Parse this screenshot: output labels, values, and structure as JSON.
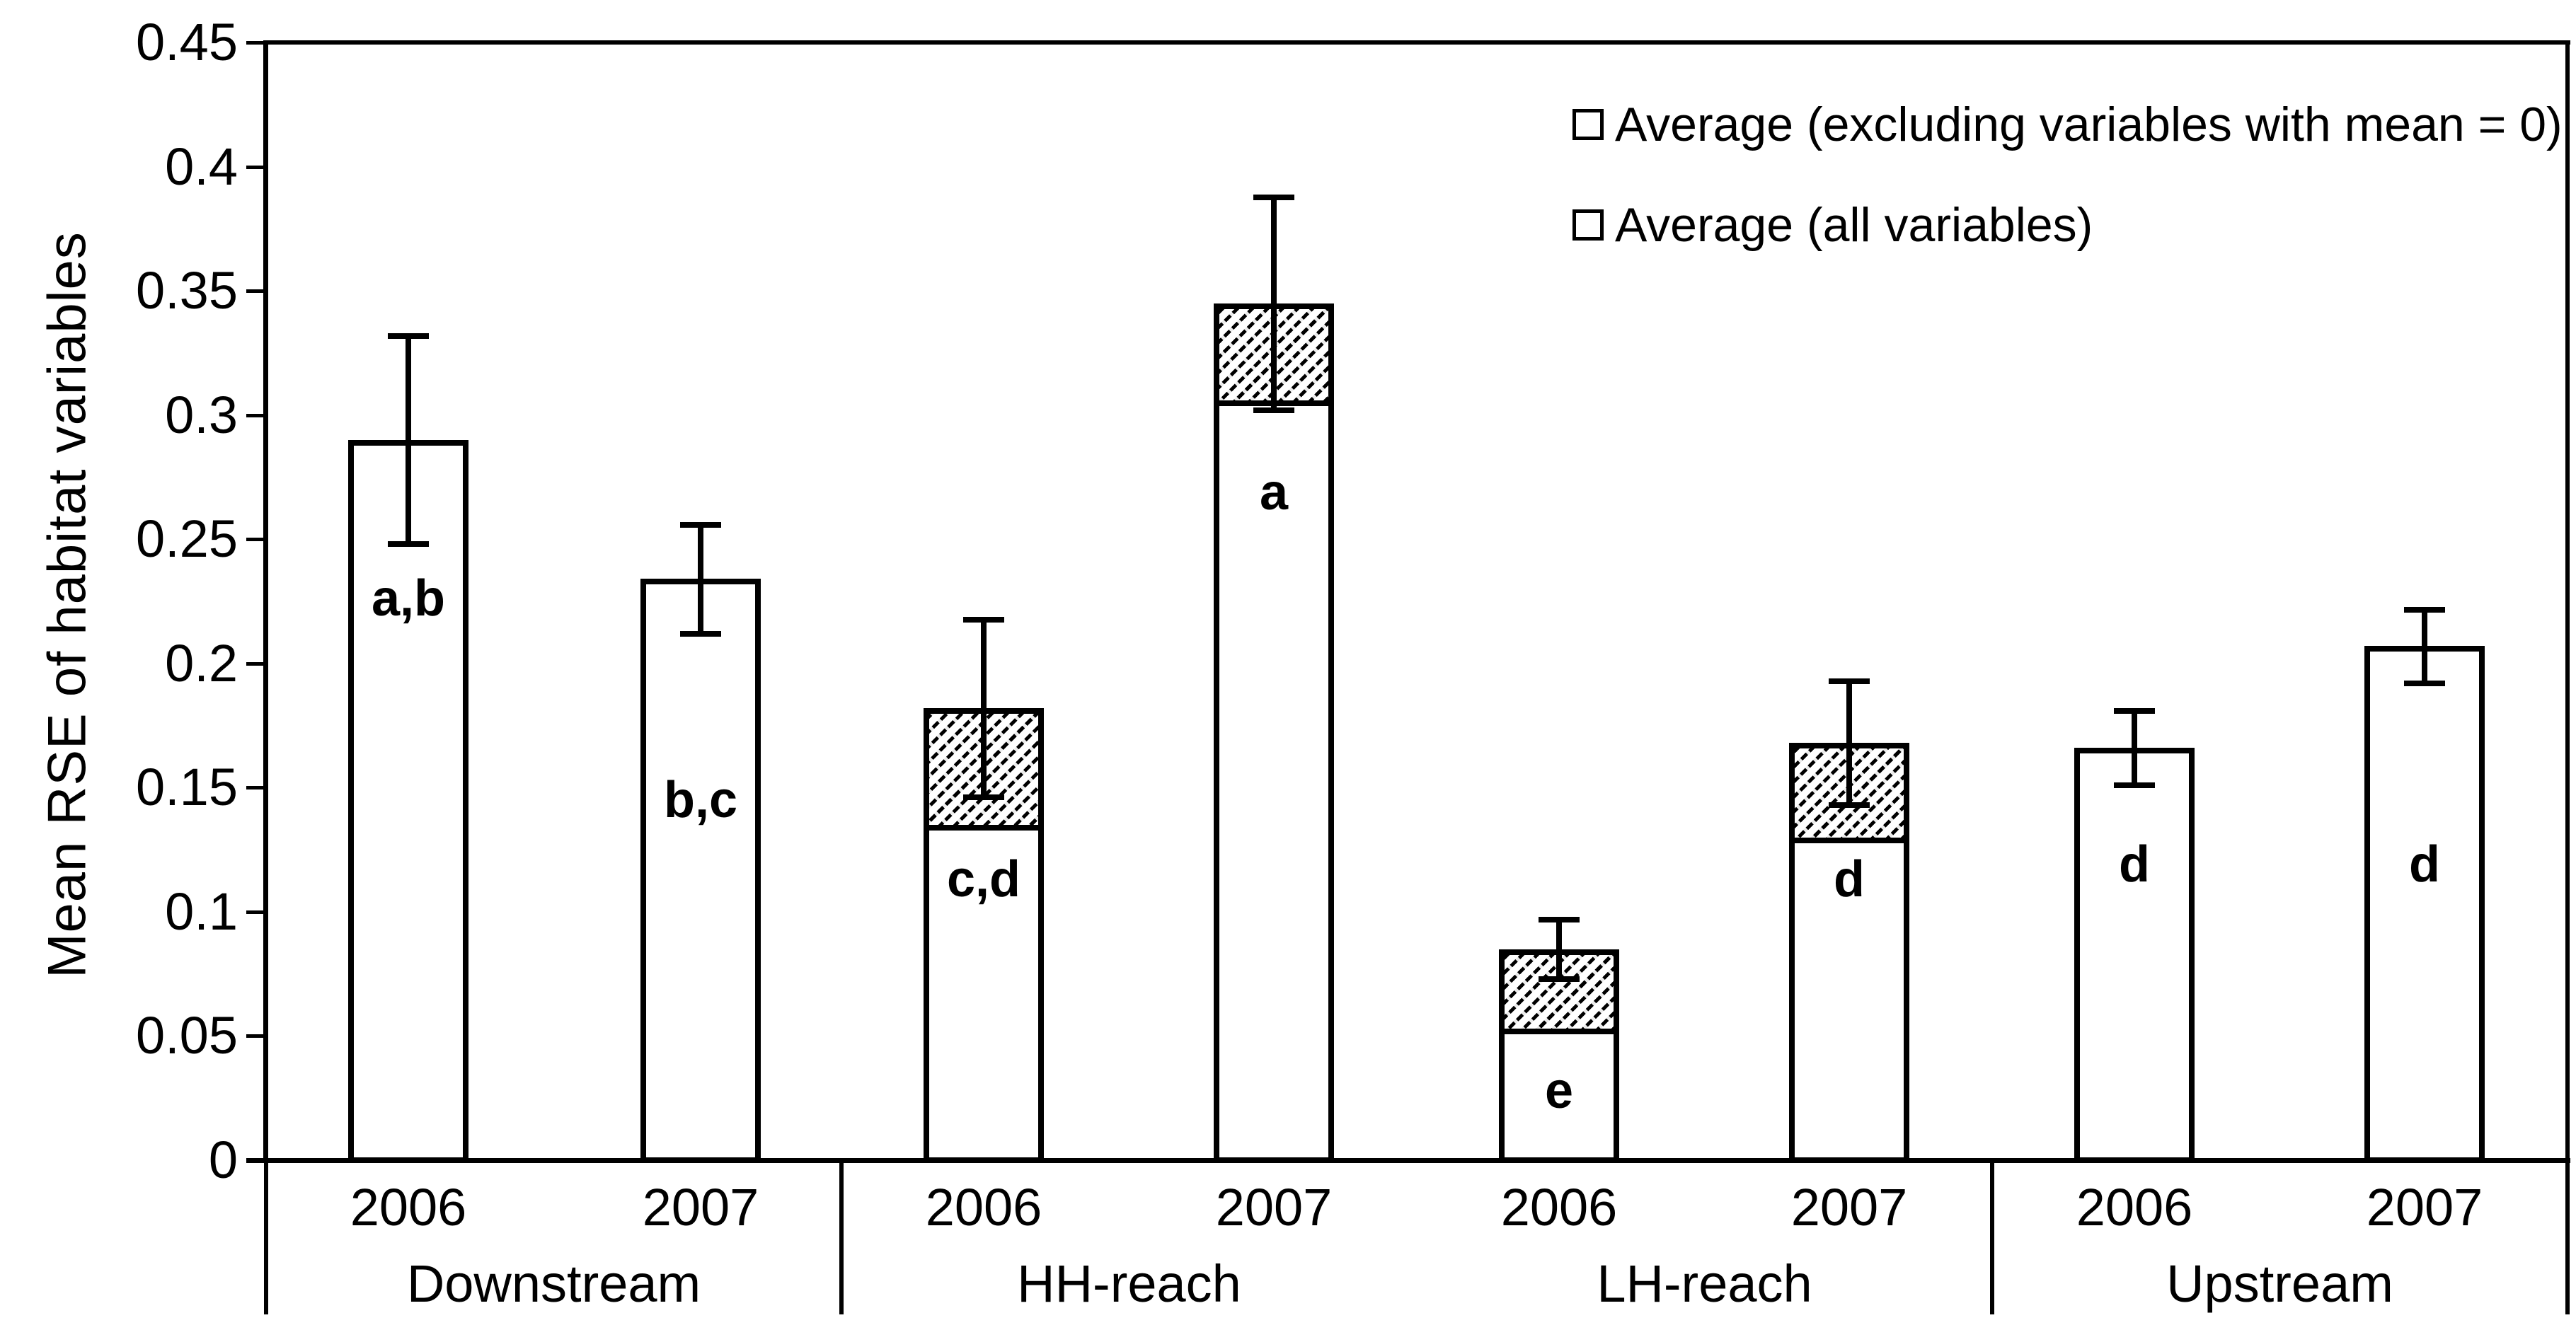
{
  "colors": {
    "ink": "#000000",
    "background": "#ffffff"
  },
  "y_axis": {
    "title": "Mean RSE of habitat variables",
    "min": 0,
    "max": 0.45,
    "step": 0.05,
    "tick_labels": [
      "0.45",
      "0.4",
      "0.35",
      "0.3",
      "0.25",
      "0.2",
      "0.15",
      "0.1",
      "0.05",
      "0"
    ]
  },
  "x_axis": {
    "groups": [
      "Downstream",
      "HH-reach",
      "LH-reach",
      "Upstream"
    ],
    "years_per_group": [
      "2006",
      "2007"
    ]
  },
  "legend": {
    "items": [
      {
        "label": "Average (excluding variables with mean = 0)",
        "swatch": "hatched"
      },
      {
        "label": "Average (all variables)",
        "swatch": "plain"
      }
    ]
  },
  "chart_data": {
    "type": "bar",
    "stacked": true,
    "grid": false,
    "legend_position": "top-right",
    "title": "",
    "xlabel": "",
    "ylabel": "Mean RSE of habitat variables",
    "ylim": [
      0,
      0.45
    ],
    "categories": [
      "Downstream 2006",
      "Downstream 2007",
      "HH-reach 2006",
      "HH-reach 2007",
      "LH-reach 2006",
      "LH-reach 2007",
      "Upstream 2006",
      "Upstream 2007"
    ],
    "series": [
      {
        "name": "Average (all variables)",
        "style": "white",
        "values": [
          0.29,
          0.234,
          0.135,
          0.306,
          0.053,
          0.13,
          0.166,
          0.207
        ]
      },
      {
        "name": "Average (excluding variables with mean = 0)",
        "style": "hatched-top-segment",
        "values": [
          0.29,
          0.234,
          0.182,
          0.345,
          0.085,
          0.168,
          0.166,
          0.207
        ]
      }
    ],
    "error_bars": {
      "centered_on": "top-of-stacked-bar",
      "plus_minus": [
        0.042,
        0.022,
        0.036,
        0.043,
        0.012,
        0.025,
        0.015,
        0.015
      ]
    },
    "sig_letters": [
      {
        "text": "a,b",
        "y": 0.226
      },
      {
        "text": "b,c",
        "y": 0.145
      },
      {
        "text": "c,d",
        "y": 0.113
      },
      {
        "text": "a",
        "y": 0.269
      },
      {
        "text": "e",
        "y": 0.028
      },
      {
        "text": "d",
        "y": 0.113
      },
      {
        "text": "d",
        "y": 0.119
      },
      {
        "text": "d",
        "y": 0.119
      }
    ]
  }
}
